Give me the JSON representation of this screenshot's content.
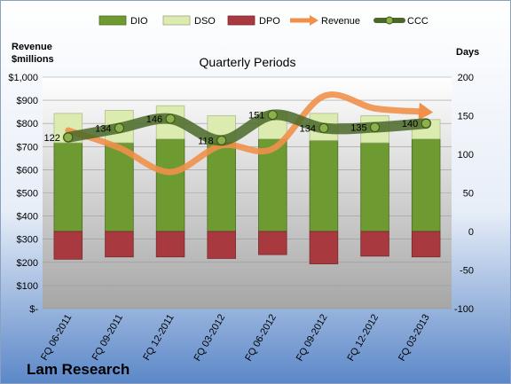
{
  "chart_data": {
    "type": "bar",
    "title": "Quarterly Periods",
    "company": "Lam Research",
    "left_axis_title": [
      "Revenue",
      "$millions"
    ],
    "right_axis_title": "Days",
    "categories": [
      "FQ 06-2011",
      "FQ 09-2011",
      "FQ 12-2011",
      "FQ 03-2012",
      "FQ 06-2012",
      "FQ 09-2012",
      "FQ 12-2012",
      "FQ 03-2013"
    ],
    "left_axis": {
      "min": 0,
      "max": 1000,
      "step": 100,
      "tick_labels": [
        "$-",
        "$100",
        "$200",
        "$300",
        "$400",
        "$500",
        "$600",
        "$700",
        "$800",
        "$900",
        "$1,000"
      ]
    },
    "right_axis": {
      "min": -100,
      "max": 200,
      "step": 50,
      "tick_labels": [
        "-100",
        "-50",
        "0",
        "50",
        "100",
        "150",
        "200"
      ]
    },
    "legend_position": "top",
    "series": [
      {
        "name": "DIO",
        "type": "stacked-bar",
        "axis": "right",
        "color": "#6e9a32",
        "values": [
          115,
          115,
          120,
          115,
          120,
          118,
          115,
          120
        ]
      },
      {
        "name": "DSO",
        "type": "stacked-bar",
        "axis": "right",
        "color": "#dcebb0",
        "values": [
          38,
          42,
          43,
          35,
          35,
          35,
          35,
          25
        ]
      },
      {
        "name": "DPO",
        "type": "stacked-bar",
        "axis": "right",
        "color": "#a83a3f",
        "values": [
          -36,
          -33,
          -33,
          -35,
          -30,
          -42,
          -32,
          -33
        ]
      },
      {
        "name": "Revenue",
        "type": "line",
        "axis": "left",
        "color": "#f0904a",
        "values": [
          770,
          695,
          590,
          705,
          690,
          918,
          865,
          850
        ]
      },
      {
        "name": "CCC",
        "type": "line",
        "axis": "right",
        "color": "#4a6828",
        "values": [
          122,
          134,
          146,
          118,
          151,
          134,
          135,
          140
        ],
        "labels": [
          "122",
          "134",
          "146",
          "118",
          "151",
          "134",
          "135",
          "140"
        ]
      }
    ]
  }
}
